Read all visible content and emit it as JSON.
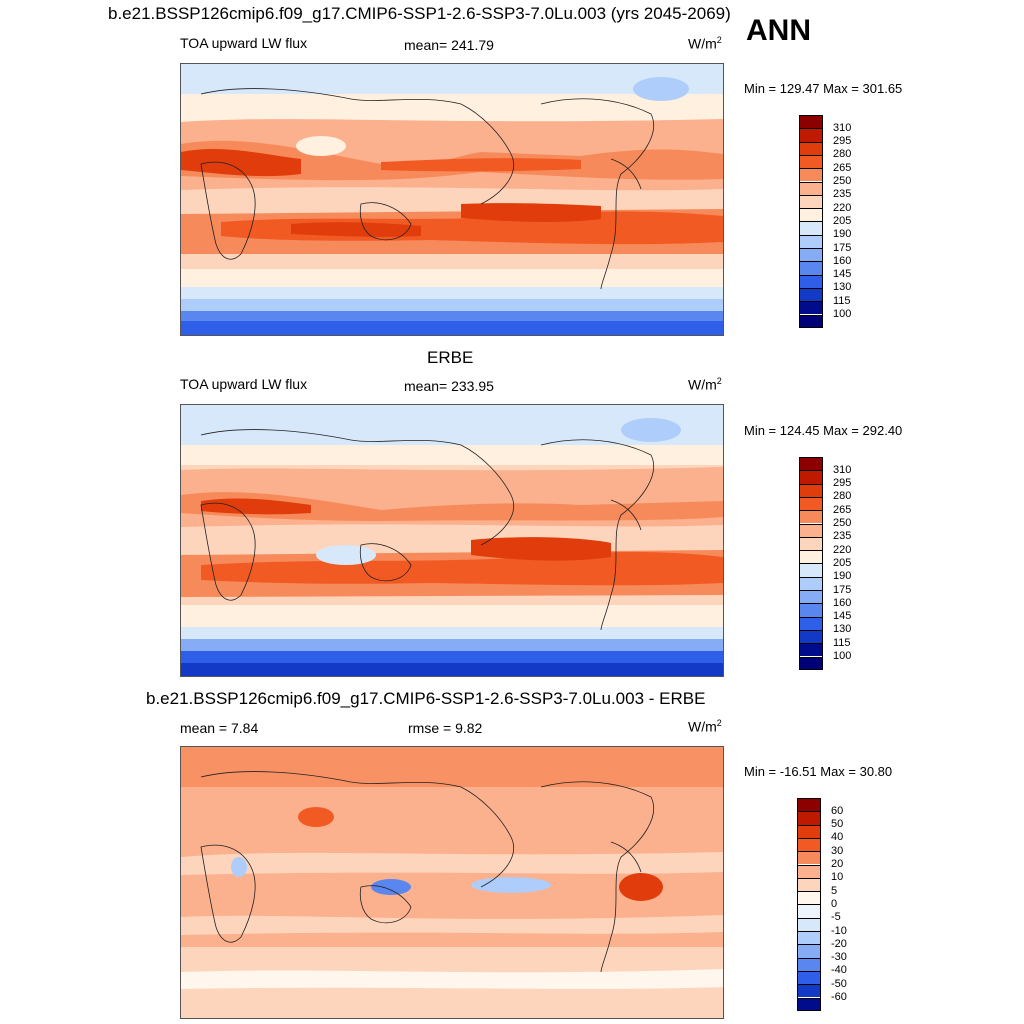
{
  "header": {
    "case_title": "b.e21.BSSP126cmip6.f09_g17.CMIP6-SSP1-2.6-SSP3-7.0Lu.003 (yrs 2045-2069)",
    "season": "ANN"
  },
  "panels": [
    {
      "id": "model",
      "title": "",
      "variable": "TOA upward LW flux",
      "stat_left": "",
      "stat_center": "mean= 241.79",
      "units": "W/m",
      "units_exp": "2",
      "minmax": "Min = 129.47 Max = 301.65",
      "colorbar_ticks": [
        "310",
        "295",
        "280",
        "265",
        "250",
        "235",
        "220",
        "205",
        "190",
        "175",
        "160",
        "145",
        "130",
        "115",
        "100"
      ]
    },
    {
      "id": "obs",
      "title": "ERBE",
      "variable": "TOA upward LW flux",
      "stat_left": "",
      "stat_center": "mean= 233.95",
      "units": "W/m",
      "units_exp": "2",
      "minmax": "Min = 124.45 Max = 292.40",
      "colorbar_ticks": [
        "310",
        "295",
        "280",
        "265",
        "250",
        "235",
        "220",
        "205",
        "190",
        "175",
        "160",
        "145",
        "130",
        "115",
        "100"
      ]
    },
    {
      "id": "diff",
      "title": "b.e21.BSSP126cmip6.f09_g17.CMIP6-SSP1-2.6-SSP3-7.0Lu.003 - ERBE",
      "variable": "",
      "stat_left": "mean =   7.84",
      "stat_center": "rmse =   9.82",
      "units": "W/m",
      "units_exp": "2",
      "minmax": "Min = -16.51 Max =  30.80",
      "colorbar_ticks": [
        "60",
        "50",
        "40",
        "30",
        "20",
        "10",
        "5",
        "0",
        "-5",
        "-10",
        "-20",
        "-30",
        "-40",
        "-50",
        "-60"
      ]
    }
  ],
  "colors": {
    "abs_scale": [
      "#8c0000",
      "#bf1900",
      "#e03c0c",
      "#f25a24",
      "#f78a5a",
      "#fbb08e",
      "#fdd5bd",
      "#fff0e0",
      "#d7e8fb",
      "#aecdfa",
      "#85acf5",
      "#5a86ef",
      "#2f5fe8",
      "#1339c7",
      "#000c8c",
      "#000077"
    ],
    "diff_scale": [
      "#8c0000",
      "#bf1900",
      "#e03c0c",
      "#f25a24",
      "#f78a5a",
      "#fbb08e",
      "#fdd5bd",
      "#fff6ee",
      "#eef4fd",
      "#d7e8fb",
      "#aecdfa",
      "#85acf5",
      "#5a86ef",
      "#2f5fe8",
      "#1339c7",
      "#000c8c"
    ],
    "land_outline": "#222222"
  }
}
